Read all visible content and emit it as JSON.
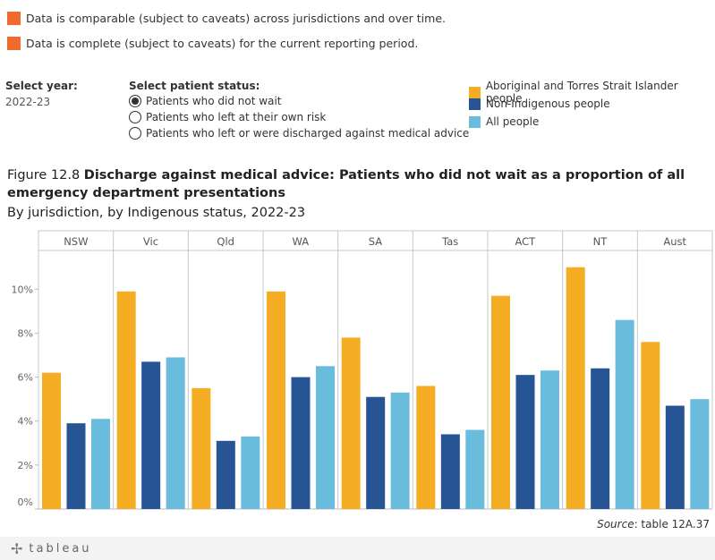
{
  "caveats": [
    {
      "text": "Data is comparable (subject to caveats) across jurisdictions and over time.",
      "color": "#f26a2e"
    },
    {
      "text": "Data is complete (subject to caveats) for the current reporting period.",
      "color": "#f26a2e"
    }
  ],
  "filters": {
    "year_label": "Select year:",
    "year_value": "2022-23",
    "status_label": "Select patient status:",
    "status_options": [
      {
        "label": "Patients who did not wait",
        "selected": true
      },
      {
        "label": "Patients who left at their own risk",
        "selected": false
      },
      {
        "label": "Patients who left or were discharged against medical advice",
        "selected": false
      }
    ]
  },
  "legend": [
    {
      "label": "Aboriginal and Torres Strait Islander people",
      "color": "#f5ad23"
    },
    {
      "label": "Non-Indigenous people",
      "color": "#275495"
    },
    {
      "label": "All people",
      "color": "#69bcdc"
    }
  ],
  "figure": {
    "number": "Figure 12.8",
    "title": "Discharge against medical advice: Patients who did not wait as a proportion of all emergency department presentations",
    "subtitle": "By jurisdiction, by Indigenous status, 2022-23"
  },
  "chart_data": {
    "type": "bar",
    "categories": [
      "NSW",
      "Vic",
      "Qld",
      "WA",
      "SA",
      "Tas",
      "ACT",
      "NT",
      "Aust"
    ],
    "series": [
      {
        "name": "Aboriginal and Torres Strait Islander people",
        "color": "#f5ad23",
        "values": [
          6.2,
          9.9,
          5.5,
          9.9,
          7.8,
          5.6,
          9.7,
          11.0,
          7.6
        ]
      },
      {
        "name": "Non-Indigenous people",
        "color": "#275495",
        "values": [
          3.9,
          6.7,
          3.1,
          6.0,
          5.1,
          3.4,
          6.1,
          6.4,
          4.7
        ]
      },
      {
        "name": "All people",
        "color": "#69bcdc",
        "values": [
          4.1,
          6.9,
          3.3,
          6.5,
          5.3,
          3.6,
          6.3,
          8.6,
          5.0
        ]
      }
    ],
    "yticks": [
      0,
      2,
      4,
      6,
      8,
      10
    ],
    "ytick_labels": [
      "0%",
      "2%",
      "4%",
      "6%",
      "8%",
      "10%"
    ],
    "ylim": [
      0,
      11.6
    ],
    "grid": false,
    "legend_position": "top-right"
  },
  "source": {
    "prefix": "Source",
    "text": ": table 12A.37"
  },
  "footer": {
    "logo_text": "tableau"
  }
}
